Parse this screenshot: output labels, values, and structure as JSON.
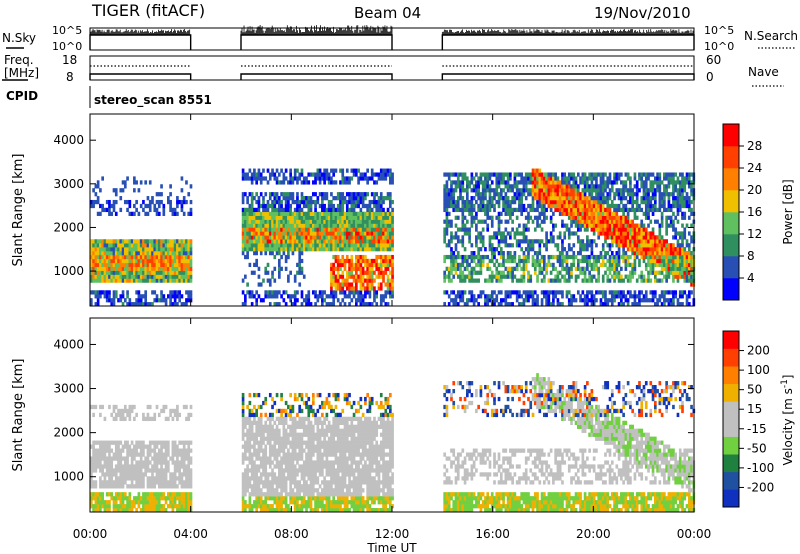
{
  "header": {
    "title": "TIGER (fitACF)",
    "beam": "Beam 04",
    "date": "19/Nov/2010"
  },
  "top_panels": {
    "nsky_label": "N.Sky",
    "nsearch_label": "N.Search",
    "noise_top_tick": "10^5",
    "noise_bottom_tick": "10^0",
    "freq_label_line1": "Freq.",
    "freq_label_line2": "[MHz]",
    "freq_ticks": [
      "18",
      "8"
    ],
    "nave_label": "Nave",
    "nave_ticks": [
      "60",
      "0"
    ],
    "cpid_label": "CPID",
    "cpid_value": "stereo_scan 8551"
  },
  "colors": {
    "power_scale": [
      "#0000ff",
      "#2850b4",
      "#2f8f5f",
      "#60c060",
      "#f0c000",
      "#ff8000",
      "#ff4000",
      "#ff0000"
    ],
    "velocity_scale": [
      "#1030c0",
      "#2050a0",
      "#208040",
      "#70d040",
      "#c0c0c0",
      "#c0c0c0",
      "#f0b000",
      "#ff8000",
      "#ff4000",
      "#ff0000"
    ]
  },
  "chart_data": [
    {
      "type": "heatmap",
      "name": "power",
      "ylabel": "Slant Range [km]",
      "ylim": [
        200,
        4600
      ],
      "yticks": [
        "1000",
        "2000",
        "3000",
        "4000"
      ],
      "xlim": [
        "00:00",
        "24:00"
      ],
      "data_gaps_ut": [
        [
          "04:00",
          "06:00"
        ],
        [
          "12:00",
          "14:00"
        ]
      ],
      "colorbar": {
        "label": "Power [dB]",
        "ticks": [
          "4",
          "8",
          "12",
          "16",
          "20",
          "24",
          "28"
        ],
        "range": [
          0,
          30
        ]
      }
    },
    {
      "type": "heatmap",
      "name": "velocity",
      "ylabel": "Slant Range [km]",
      "ylim": [
        200,
        4600
      ],
      "yticks": [
        "1000",
        "2000",
        "3000",
        "4000"
      ],
      "xlabel": "Time UT",
      "xticks": [
        "00:00",
        "04:00",
        "08:00",
        "12:00",
        "16:00",
        "20:00",
        "00:00"
      ],
      "data_gaps_ut": [
        [
          "04:00",
          "06:00"
        ],
        [
          "12:00",
          "14:00"
        ]
      ],
      "colorbar": {
        "label": "Velocity [m s^-1]",
        "ticks": [
          "200",
          "100",
          "50",
          "15",
          "-15",
          "-50",
          "-100",
          "-200"
        ],
        "range": [
          -250,
          250
        ]
      }
    }
  ]
}
